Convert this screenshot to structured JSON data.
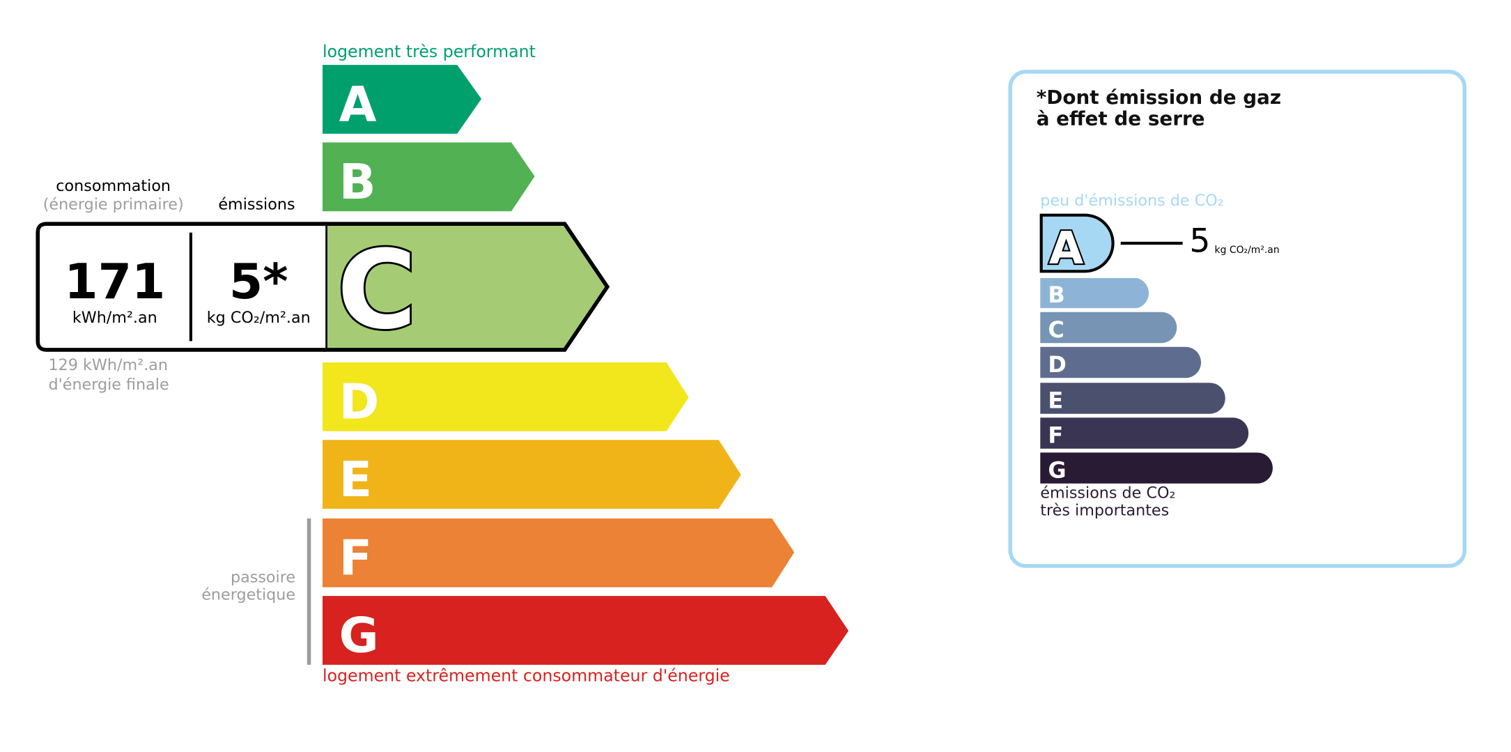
{
  "energy": {
    "top_label": "logement très performant",
    "bottom_label": "logement extrêmement consommateur d'énergie",
    "passoire_line1": "passoire",
    "passoire_line2": "énergetique",
    "classes": [
      {
        "letter": "A",
        "color": "#00a06d"
      },
      {
        "letter": "B",
        "color": "#52b153"
      },
      {
        "letter": "C",
        "color": "#a5cc74"
      },
      {
        "letter": "D",
        "color": "#f2e61c"
      },
      {
        "letter": "E",
        "color": "#f0b419"
      },
      {
        "letter": "F",
        "color": "#eb8235"
      },
      {
        "letter": "G",
        "color": "#d7221f"
      }
    ],
    "current_class": "C",
    "consumption_label": "consommation",
    "consumption_sub": "(énergie primaire)",
    "emissions_label": "émissions",
    "consumption_value": "171",
    "consumption_unit": "kWh/m².an",
    "emissions_value": "5*",
    "emissions_unit": "kg CO₂/m².an",
    "final_energy_line1": "129 kWh/m².an",
    "final_energy_line2": "d'énergie finale"
  },
  "ges": {
    "title_line1": "*Dont émission de gaz",
    "title_line2": "à effet de serre",
    "top_label": "peu d'émissions de CO₂",
    "bottom_line1": "émissions de CO₂",
    "bottom_line2": "très importantes",
    "current_class": "A",
    "value": "5",
    "unit": "kg CO₂/m².an",
    "border_color": "#a6d8f5",
    "classes": [
      {
        "letter": "A",
        "color": "#a6d8f3"
      },
      {
        "letter": "B",
        "color": "#8db4d6"
      },
      {
        "letter": "C",
        "color": "#7794b4"
      },
      {
        "letter": "D",
        "color": "#5e6d8f"
      },
      {
        "letter": "E",
        "color": "#4c506f"
      },
      {
        "letter": "F",
        "color": "#393552"
      },
      {
        "letter": "G",
        "color": "#2a1b35"
      }
    ]
  }
}
